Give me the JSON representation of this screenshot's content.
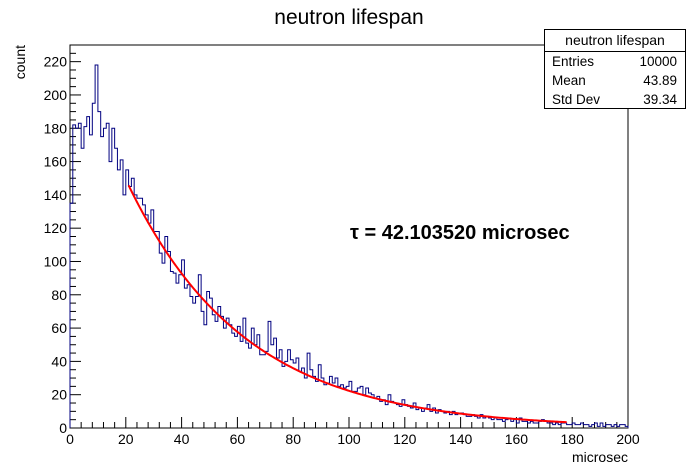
{
  "chart_data": {
    "type": "histogram",
    "title": "neutron lifespan",
    "xlabel": "microsec",
    "ylabel": "count",
    "xlim": [
      0,
      200
    ],
    "ylim": [
      0,
      230
    ],
    "bin_width": 1,
    "xticks": [
      "0",
      "20",
      "40",
      "60",
      "80",
      "100",
      "120",
      "140",
      "160",
      "180",
      "200"
    ],
    "yticks": [
      "0",
      "20",
      "40",
      "60",
      "80",
      "100",
      "120",
      "140",
      "160",
      "180",
      "200",
      "220"
    ],
    "series": [
      {
        "color": "#000080",
        "values": [
          135,
          182,
          180,
          183,
          168,
          181,
          187,
          176,
          195,
          218,
          190,
          175,
          180,
          183,
          160,
          180,
          168,
          155,
          161,
          140,
          155,
          145,
          150,
          140,
          138,
          138,
          134,
          128,
          123,
          131,
          118,
          118,
          105,
          99,
          115,
          106,
          94,
          93,
          87,
          92,
          101,
          84,
          86,
          79,
          75,
          79,
          92,
          70,
          62,
          82,
          78,
          68,
          64,
          73,
          67,
          60,
          66,
          62,
          57,
          55,
          61,
          52,
          66,
          51,
          48,
          60,
          50,
          56,
          44,
          44,
          46,
          64,
          50,
          54,
          42,
          47,
          37,
          40,
          47,
          41,
          39,
          42,
          34,
          36,
          30,
          45,
          35,
          31,
          28,
          38,
          30,
          26,
          27,
          31,
          27,
          30,
          25,
          26,
          24,
          25,
          28,
          22,
          22,
          24,
          25,
          20,
          24,
          21,
          20,
          18,
          19,
          16,
          17,
          14,
          20,
          16,
          15,
          14,
          13,
          17,
          14,
          13,
          12,
          15,
          11,
          12,
          10,
          12,
          14,
          10,
          12,
          9,
          11,
          10,
          9,
          10,
          8,
          10,
          8,
          9,
          9,
          8,
          7,
          7,
          8,
          7,
          6,
          8,
          6,
          7,
          6,
          5,
          6,
          5,
          5,
          4,
          5,
          6,
          4,
          5,
          3,
          6,
          4,
          4,
          3,
          4,
          3,
          3,
          4,
          5,
          4,
          3,
          3,
          2,
          3,
          2,
          3,
          3,
          2,
          2,
          3,
          2,
          2,
          3,
          2,
          2,
          1,
          2,
          3,
          1,
          3,
          1,
          2,
          2,
          1,
          2,
          1,
          2,
          2,
          1
        ]
      }
    ],
    "fit": {
      "color": "#ff0000",
      "function": "exponential",
      "amplitude": 240,
      "tau": 42.10352,
      "x_range": [
        21,
        178
      ]
    },
    "annotation": "τ = 42.103520 microsec",
    "stats": {
      "title": "neutron lifespan",
      "rows": [
        {
          "label": "Entries",
          "value": "10000"
        },
        {
          "label": "Mean",
          "value": "43.89"
        },
        {
          "label": "Std Dev",
          "value": "39.34"
        }
      ]
    }
  }
}
